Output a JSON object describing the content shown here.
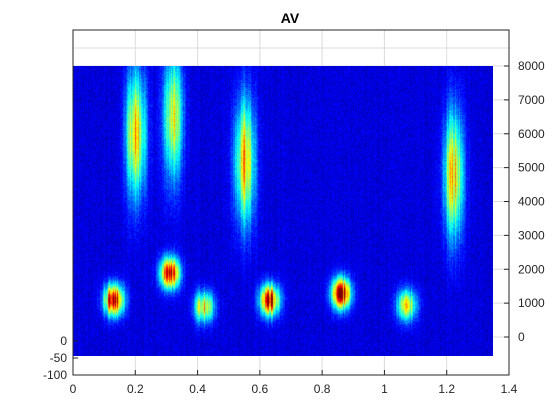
{
  "chart_data": {
    "type": "heatmap",
    "title": "AV",
    "xlabel": "",
    "ylabel": "",
    "xlim": [
      0,
      1.4
    ],
    "x_ticks": [
      "0",
      "0.2",
      "0.4",
      "0.6",
      "0.8",
      "1",
      "1.2",
      "1.4"
    ],
    "x_tick_values": [
      0,
      0.2,
      0.4,
      0.6,
      0.8,
      1.0,
      1.2,
      1.4
    ],
    "left_axis": {
      "ticks": [
        "0",
        "-50",
        "-100"
      ],
      "tick_values": [
        0,
        -50,
        -100
      ]
    },
    "right_axis": {
      "ylim": [
        0,
        8000
      ],
      "ticks": [
        "0",
        "1000",
        "2000",
        "3000",
        "4000",
        "5000",
        "6000",
        "7000",
        "8000"
      ],
      "tick_values": [
        0,
        1000,
        2000,
        3000,
        4000,
        5000,
        6000,
        7000,
        8000
      ]
    },
    "grid": true,
    "colormap": "jet",
    "time_range": [
      0.0,
      1.35
    ],
    "frequency_range": [
      0,
      7900
    ],
    "energy_regions": [
      {
        "t": 0.13,
        "f": 1100,
        "level": 0.95
      },
      {
        "t": 0.2,
        "f": 6000,
        "level": 0.6
      },
      {
        "t": 0.31,
        "f": 1900,
        "level": 0.85
      },
      {
        "t": 0.32,
        "f": 6500,
        "level": 0.5
      },
      {
        "t": 0.42,
        "f": 900,
        "level": 0.6
      },
      {
        "t": 0.55,
        "f": 5200,
        "level": 0.65
      },
      {
        "t": 0.63,
        "f": 1100,
        "level": 0.85
      },
      {
        "t": 0.86,
        "f": 1300,
        "level": 0.9
      },
      {
        "t": 1.07,
        "f": 950,
        "level": 0.55
      },
      {
        "t": 1.22,
        "f": 4800,
        "level": 0.6
      }
    ],
    "colors": {
      "background": "#00008f",
      "frame": "#262626",
      "grid": "#dcdcdc"
    }
  }
}
